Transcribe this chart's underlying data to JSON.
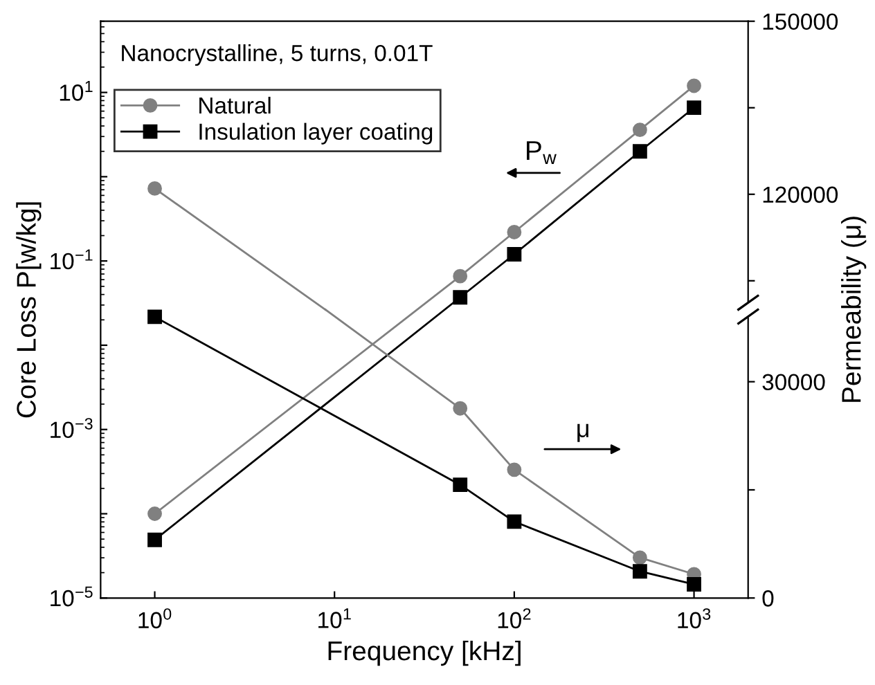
{
  "chart_data": {
    "type": "line",
    "xlabel": "Frequency [kHz]",
    "ylabel": "Core Loss P[w/kg]",
    "y2label": "Permeability (μ)",
    "annotations": [
      "Nanocrystalline, 5 turns, 0.01T",
      "P$_{w}$",
      "μ"
    ],
    "x": [
      1,
      50,
      100,
      500,
      1000
    ],
    "series": [
      {
        "name": "Natural",
        "color": "#808080",
        "marker": "circle",
        "values": [
          0.0001,
          0.066,
          0.22,
          3.6,
          12
        ]
      },
      {
        "name": "Insulation layer coating",
        "color": "#000000",
        "marker": "square",
        "values": [
          4.9e-05,
          0.037,
          0.12,
          2.0,
          6.6
        ]
      },
      {
        "color": "#808080",
        "marker": "circle",
        "axis": "y3",
        "x": [
          1,
          8.9
        ],
        "values": [
          121000,
          100000
        ]
      },
      {
        "color": "#808080",
        "marker": "circle",
        "axis": "y2",
        "x": [
          8.9,
          50,
          100,
          500,
          1000
        ],
        "values": [
          40000,
          26300,
          17800,
          5600,
          3300
        ]
      },
      {
        "color": "#000000",
        "marker": "square",
        "axis": "y2",
        "values": [
          39000,
          15700,
          10600,
          3700,
          1900
        ]
      }
    ],
    "log": "xy",
    "xlim": [
      0.5,
      2000
    ],
    "xticks": [
      {
        "value": 1,
        "label": "10$^{0}$"
      },
      {
        "value": 10,
        "label": "10$^{1}$"
      },
      {
        "value": 100,
        "label": "10$^{2}$"
      },
      {
        "value": 1000,
        "label": "10$^{3}$"
      }
    ],
    "ylim": [
      1e-05,
      70
    ],
    "yticks": [
      {
        "value": 1e-05,
        "label": "10$^{−5}$"
      },
      {
        "value": 0.0001,
        "label": null
      },
      {
        "value": 0.001,
        "label": "10$^{−3}$"
      },
      {
        "value": 0.01,
        "label": null
      },
      {
        "value": 0.1,
        "label": "10$^{−1}$"
      },
      {
        "value": 1,
        "label": null
      },
      {
        "value": 10,
        "label": "10$^{1}$"
      }
    ],
    "y2lim": [
      0,
      80000
    ],
    "y2ticks": [
      0,
      {
        "value": 15000,
        "label": null
      },
      30000
    ],
    "y3lim": [
      50000,
      150000
    ],
    "y3ticks": [
      {
        "value": 105000,
        "label": null
      },
      120000,
      {
        "value": 135000,
        "label": null
      },
      150000
    ],
    "legend": "top left",
    "grid": false,
    "line_style": "solid"
  }
}
